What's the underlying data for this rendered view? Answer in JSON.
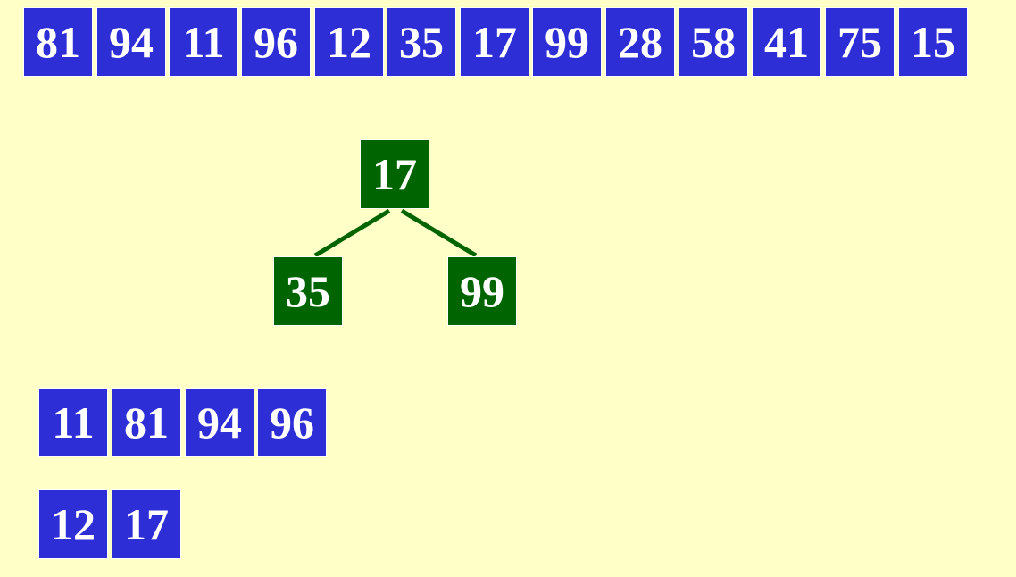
{
  "input_array": {
    "values": [
      "81",
      "94",
      "11",
      "96",
      "12",
      "35",
      "17",
      "99",
      "28",
      "58",
      "41",
      "75",
      "15"
    ]
  },
  "heap_tree": {
    "root": "17",
    "left_child": "35",
    "right_child": "99"
  },
  "output_runs": [
    {
      "values": [
        "11",
        "81",
        "94",
        "96"
      ]
    },
    {
      "values": [
        "12",
        "17"
      ]
    }
  ],
  "colors": {
    "background": "#ffffc8",
    "array_cell": "#2e2ed6",
    "tree_node": "#006400",
    "edge": "#006400",
    "text": "#ffffff"
  }
}
